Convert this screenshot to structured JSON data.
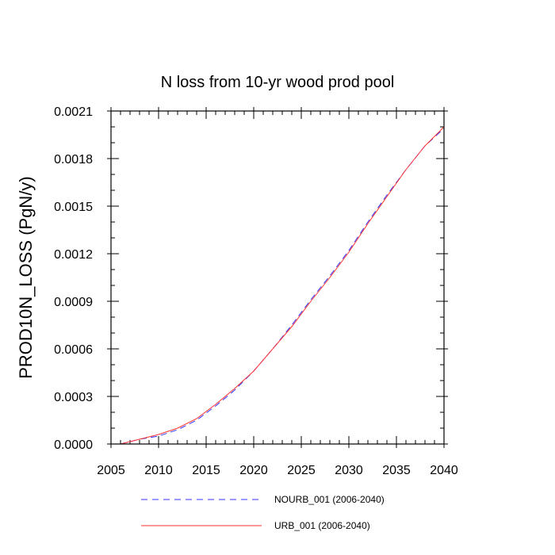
{
  "chart_data": {
    "type": "line",
    "title": "N loss from 10-yr wood prod pool",
    "xlabel": "",
    "ylabel": "PROD10N_LOSS  (PgN/y)",
    "xlim": [
      2005,
      2040
    ],
    "ylim": [
      0,
      0.0021
    ],
    "x_ticks": [
      2005,
      2010,
      2015,
      2020,
      2025,
      2030,
      2035,
      2040
    ],
    "x_tick_labels": [
      "2005",
      "2010",
      "2015",
      "2020",
      "2025",
      "2030",
      "2035",
      "2040"
    ],
    "y_ticks": [
      0,
      0.0003,
      0.0006,
      0.0009,
      0.0012,
      0.0015,
      0.0018,
      0.0021
    ],
    "y_tick_labels": [
      "0.0000",
      "0.0003",
      "0.0006",
      "0.0009",
      "0.0012",
      "0.0015",
      "0.0018",
      "0.0021"
    ],
    "x_minor_step": 1,
    "y_minor_step": 0.0001,
    "grid": false,
    "legend_position": "bottom",
    "series": [
      {
        "name": "NOURB_001 (2006-2040)",
        "color": "#3333ff",
        "dash": "dashed",
        "x": [
          2006,
          2008,
          2010,
          2012,
          2014,
          2016,
          2018,
          2020,
          2022,
          2024,
          2026,
          2028,
          2030,
          2032,
          2034,
          2036,
          2038,
          2040
        ],
        "y": [
          0.0,
          3e-05,
          5e-05,
          9e-05,
          0.00015,
          0.00024,
          0.00034,
          0.00046,
          0.0006,
          0.00075,
          0.00091,
          0.00106,
          0.00122,
          0.0014,
          0.00157,
          0.00173,
          0.00188,
          0.00199
        ]
      },
      {
        "name": "URB_001 (2006-2040)",
        "color": "#ff3333",
        "dash": "solid",
        "x": [
          2006,
          2008,
          2010,
          2012,
          2014,
          2016,
          2018,
          2020,
          2022,
          2024,
          2026,
          2028,
          2030,
          2032,
          2034,
          2036,
          2038,
          2040
        ],
        "y": [
          0.0,
          3e-05,
          6e-05,
          0.0001,
          0.00016,
          0.00025,
          0.00035,
          0.00046,
          0.0006,
          0.00074,
          0.0009,
          0.00105,
          0.00121,
          0.00139,
          0.00156,
          0.00173,
          0.00188,
          0.002
        ]
      }
    ]
  }
}
